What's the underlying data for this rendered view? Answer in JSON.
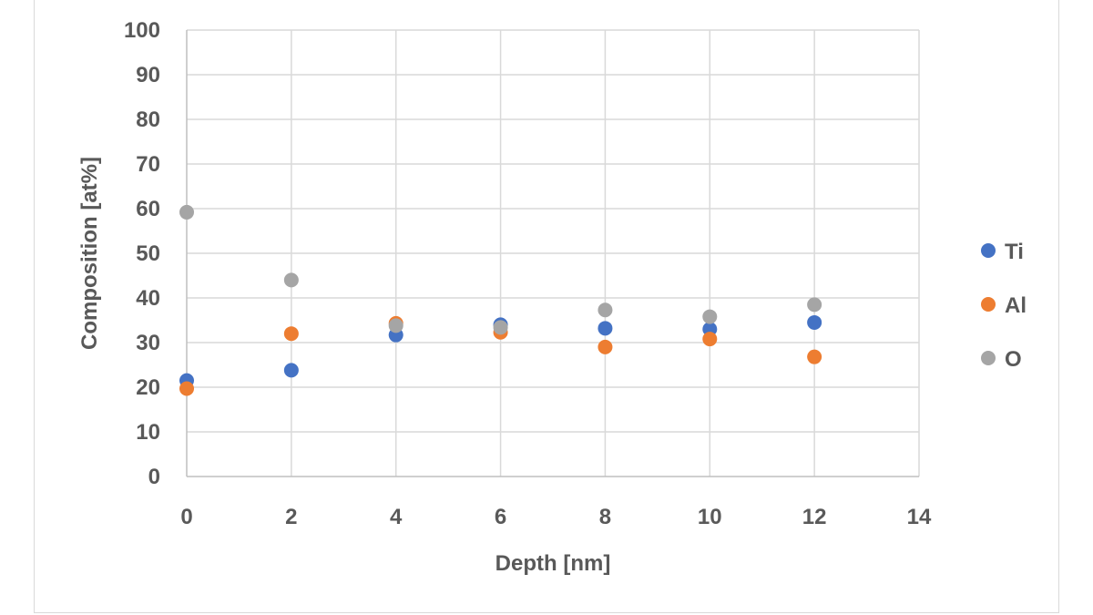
{
  "chart_data": {
    "type": "scatter",
    "title": "",
    "xlabel": "Depth [nm]",
    "ylabel": "Composition [at%]",
    "xlim": [
      0,
      14
    ],
    "ylim": [
      0,
      100
    ],
    "x_ticks": [
      "0",
      "2",
      "4",
      "6",
      "8",
      "10",
      "12",
      "14"
    ],
    "y_ticks": [
      "0",
      "10",
      "20",
      "30",
      "40",
      "50",
      "60",
      "70",
      "80",
      "90",
      "100"
    ],
    "grid": true,
    "legend_position": "right",
    "series": [
      {
        "name": "Ti",
        "color": "#4472C4",
        "x": [
          0,
          2,
          4,
          6,
          8,
          10,
          12
        ],
        "y": [
          21.5,
          23.8,
          31.7,
          34.0,
          33.2,
          33.0,
          34.5
        ]
      },
      {
        "name": "Al",
        "color": "#ED7D31",
        "x": [
          0,
          2,
          4,
          6,
          8,
          10,
          12
        ],
        "y": [
          19.7,
          32.0,
          34.3,
          32.3,
          29.0,
          30.8,
          26.8
        ]
      },
      {
        "name": "O",
        "color": "#A5A5A5",
        "x": [
          0,
          2,
          4,
          6,
          8,
          10,
          12
        ],
        "y": [
          59.2,
          44.0,
          33.8,
          33.4,
          37.3,
          35.8,
          38.5
        ]
      }
    ]
  }
}
